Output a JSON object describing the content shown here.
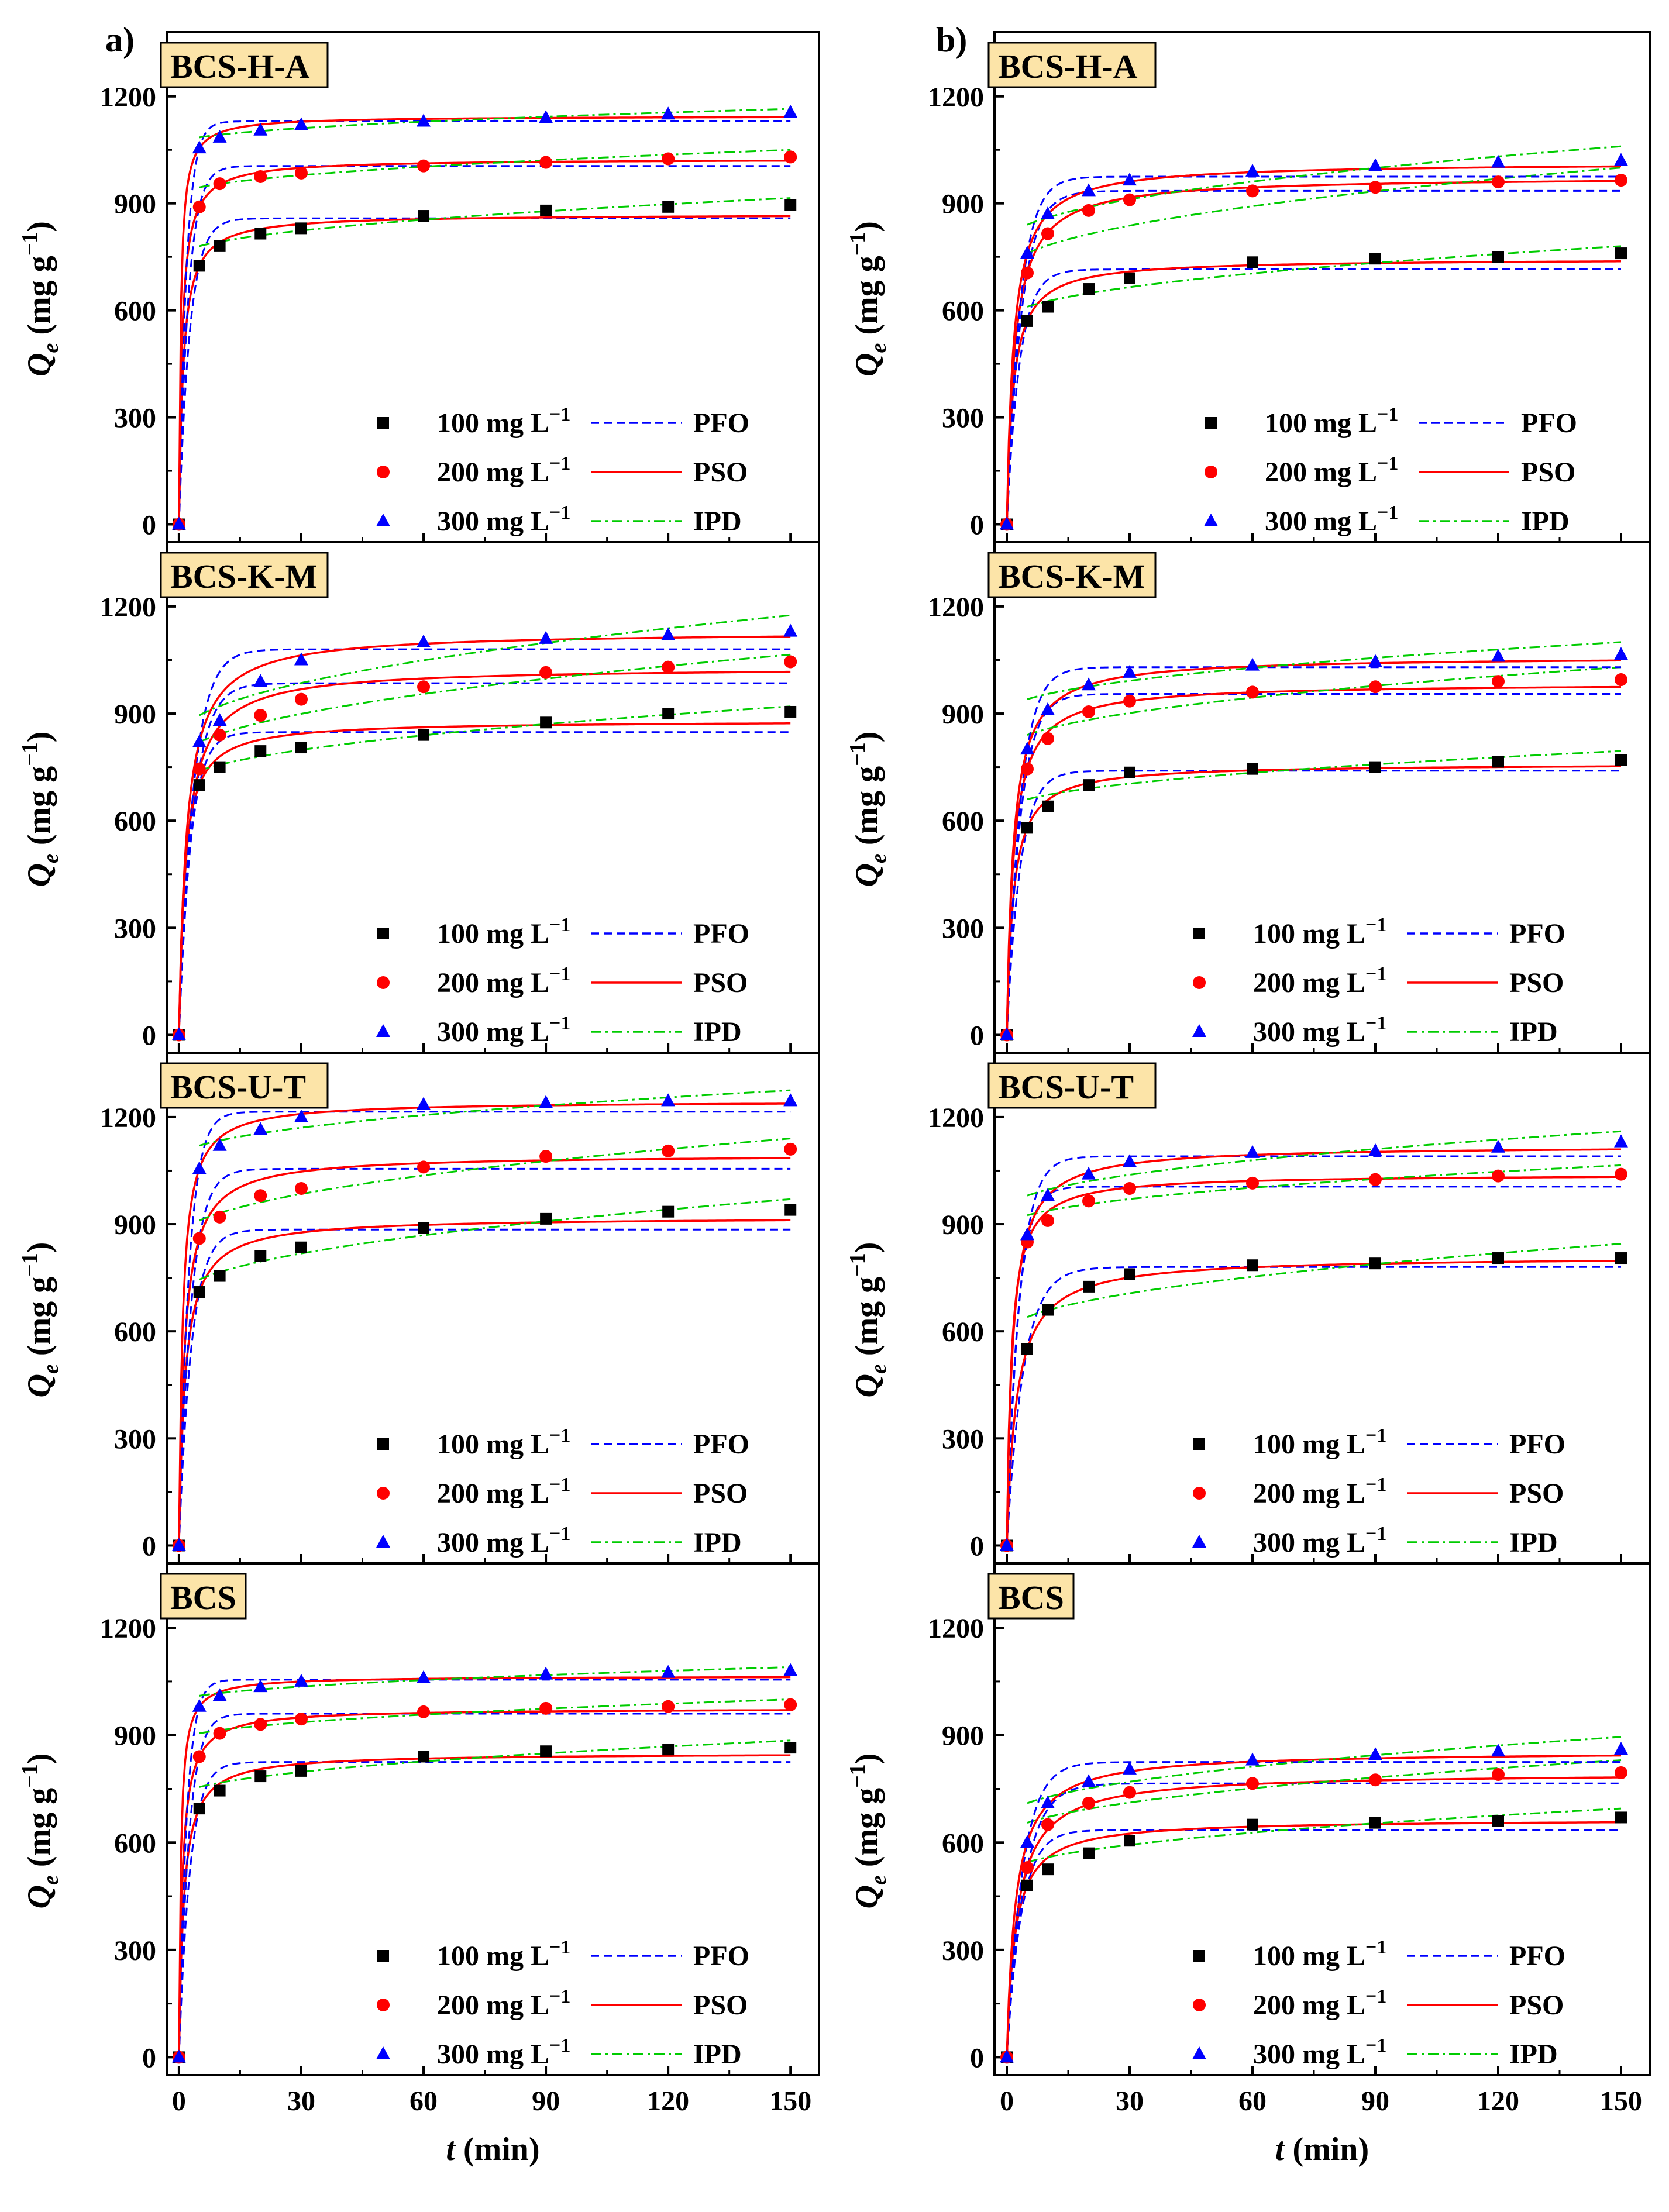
{
  "figure": {
    "column_labels": [
      "a)",
      "b)"
    ],
    "x_axis": {
      "label_italic": "t",
      "label_rest": " (min)",
      "ticks": [
        0,
        30,
        60,
        90,
        120,
        150
      ],
      "xlim": [
        -3,
        157
      ]
    },
    "y_axis": {
      "label_italic": "Q",
      "label_sub": "e",
      "label_rest": " (mg g",
      "label_sup": "−1",
      "label_close": ")",
      "ticks": [
        0,
        300,
        600,
        900,
        1200
      ],
      "ylim": [
        -50,
        1380
      ]
    },
    "legend": {
      "entries": [
        {
          "label_main": "100 mg L",
          "label_sup": "−1",
          "marker": "square",
          "color": "#000000"
        },
        {
          "label_main": "200 mg L",
          "label_sup": "−1",
          "marker": "circle",
          "color": "#ff0000"
        },
        {
          "label_main": "300 mg L",
          "label_sup": "−1",
          "marker": "triangle",
          "color": "#0000ff"
        }
      ],
      "models": [
        {
          "label": "PFO",
          "color": "#0000ff",
          "dash": "dashed"
        },
        {
          "label": "PSO",
          "color": "#ff0000",
          "dash": "solid"
        },
        {
          "label": "IPD",
          "color": "#00cc00",
          "dash": "dashdot"
        }
      ]
    },
    "colors": {
      "c100": "#000000",
      "c200": "#ff0000",
      "c300": "#0000ff",
      "pfo": "#0000ff",
      "pso": "#ff0000",
      "ipd": "#00cc00",
      "label_box": "#fce4a8"
    }
  },
  "chart_data": [
    {
      "type": "scatter",
      "panel": "a",
      "row": 0,
      "title": "BCS-H-A",
      "xlabel": "t (min)",
      "ylabel": "Qe (mg g−1)",
      "x": [
        0,
        5,
        10,
        20,
        30,
        60,
        90,
        120,
        150
      ],
      "series": [
        {
          "name": "100 mg L−1",
          "values": [
            0,
            725,
            780,
            815,
            830,
            865,
            880,
            890,
            895
          ],
          "fits": {
            "PFO_qe": 858,
            "PSO_qe": 870,
            "IPD": [
              780,
              915
            ]
          }
        },
        {
          "name": "200 mg L−1",
          "values": [
            0,
            890,
            955,
            975,
            985,
            1005,
            1015,
            1025,
            1030
          ],
          "fits": {
            "PFO_qe": 1005,
            "PSO_qe": 1025,
            "IPD": [
              945,
              1050
            ]
          }
        },
        {
          "name": "300 mg L−1",
          "values": [
            0,
            1055,
            1085,
            1105,
            1120,
            1130,
            1140,
            1150,
            1155
          ],
          "fits": {
            "PFO_qe": 1130,
            "PSO_qe": 1145,
            "IPD": [
              1085,
              1165
            ]
          }
        }
      ]
    },
    {
      "type": "scatter",
      "panel": "a",
      "row": 1,
      "title": "BCS-K-M",
      "xlabel": "t (min)",
      "ylabel": "Qe (mg g−1)",
      "x": [
        0,
        5,
        10,
        20,
        30,
        60,
        90,
        120,
        150
      ],
      "series": [
        {
          "name": "100 mg L−1",
          "values": [
            0,
            700,
            750,
            795,
            805,
            840,
            875,
            900,
            905
          ],
          "fits": {
            "PFO_qe": 848,
            "PSO_qe": 880,
            "IPD": [
              740,
              920
            ]
          }
        },
        {
          "name": "200 mg L−1",
          "values": [
            0,
            745,
            840,
            895,
            940,
            975,
            1015,
            1030,
            1045
          ],
          "fits": {
            "PFO_qe": 985,
            "PSO_qe": 1030,
            "IPD": [
              820,
              1065
            ]
          }
        },
        {
          "name": "300 mg L−1",
          "values": [
            0,
            820,
            880,
            990,
            1050,
            1100,
            1110,
            1120,
            1130
          ],
          "fits": {
            "PFO_qe": 1080,
            "PSO_qe": 1130,
            "IPD": [
              895,
              1175
            ]
          }
        }
      ]
    },
    {
      "type": "scatter",
      "panel": "a",
      "row": 2,
      "title": "BCS-U-T",
      "xlabel": "t (min)",
      "ylabel": "Qe (mg g−1)",
      "x": [
        0,
        5,
        10,
        20,
        30,
        60,
        90,
        120,
        150
      ],
      "series": [
        {
          "name": "100 mg L−1",
          "values": [
            0,
            710,
            755,
            810,
            835,
            890,
            915,
            935,
            940
          ],
          "fits": {
            "PFO_qe": 885,
            "PSO_qe": 920,
            "IPD": [
              745,
              970
            ]
          }
        },
        {
          "name": "200 mg L−1",
          "values": [
            0,
            860,
            920,
            980,
            1000,
            1060,
            1090,
            1105,
            1110
          ],
          "fits": {
            "PFO_qe": 1055,
            "PSO_qe": 1095,
            "IPD": [
              910,
              1140
            ]
          }
        },
        {
          "name": "300 mg L−1",
          "values": [
            0,
            1055,
            1120,
            1165,
            1200,
            1235,
            1240,
            1245,
            1245
          ],
          "fits": {
            "PFO_qe": 1215,
            "PSO_qe": 1245,
            "IPD": [
              1120,
              1275
            ]
          }
        }
      ]
    },
    {
      "type": "scatter",
      "panel": "a",
      "row": 3,
      "title": "BCS",
      "xlabel": "t (min)",
      "ylabel": "Qe (mg g−1)",
      "x": [
        0,
        5,
        10,
        20,
        30,
        60,
        90,
        120,
        150
      ],
      "series": [
        {
          "name": "100 mg L−1",
          "values": [
            0,
            695,
            745,
            785,
            800,
            840,
            855,
            860,
            865
          ],
          "fits": {
            "PFO_qe": 825,
            "PSO_qe": 850,
            "IPD": [
              755,
              885
            ]
          }
        },
        {
          "name": "200 mg L−1",
          "values": [
            0,
            840,
            905,
            930,
            945,
            965,
            975,
            980,
            985
          ],
          "fits": {
            "PFO_qe": 960,
            "PSO_qe": 975,
            "IPD": [
              905,
              1000
            ]
          }
        },
        {
          "name": "300 mg L−1",
          "values": [
            0,
            980,
            1010,
            1035,
            1050,
            1060,
            1070,
            1075,
            1080
          ],
          "fits": {
            "PFO_qe": 1055,
            "PSO_qe": 1065,
            "IPD": [
              1010,
              1090
            ]
          }
        }
      ]
    },
    {
      "type": "scatter",
      "panel": "b",
      "row": 0,
      "title": "BCS-H-A",
      "xlabel": "t (min)",
      "ylabel": "Qe (mg g−1)",
      "x": [
        0,
        5,
        10,
        20,
        30,
        60,
        90,
        120,
        150
      ],
      "series": [
        {
          "name": "100 mg L−1",
          "values": [
            0,
            570,
            610,
            660,
            690,
            735,
            745,
            750,
            760
          ],
          "fits": {
            "PFO_qe": 715,
            "PSO_qe": 745,
            "IPD": [
              610,
              780
            ]
          }
        },
        {
          "name": "200 mg L−1",
          "values": [
            0,
            705,
            815,
            880,
            910,
            935,
            945,
            960,
            965
          ],
          "fits": {
            "PFO_qe": 935,
            "PSO_qe": 975,
            "IPD": [
              760,
              1000
            ]
          }
        },
        {
          "name": "300 mg L−1",
          "values": [
            0,
            760,
            870,
            935,
            965,
            990,
            1005,
            1015,
            1020
          ],
          "fits": {
            "PFO_qe": 975,
            "PSO_qe": 1015,
            "IPD": [
              840,
              1060
            ]
          }
        }
      ]
    },
    {
      "type": "scatter",
      "panel": "b",
      "row": 1,
      "title": "BCS-K-M",
      "xlabel": "t (min)",
      "ylabel": "Qe (mg g−1)",
      "x": [
        0,
        5,
        10,
        20,
        30,
        60,
        90,
        120,
        150
      ],
      "series": [
        {
          "name": "100 mg L−1",
          "values": [
            0,
            580,
            640,
            700,
            735,
            745,
            750,
            765,
            770
          ],
          "fits": {
            "PFO_qe": 740,
            "PSO_qe": 760,
            "IPD": [
              660,
              795
            ]
          }
        },
        {
          "name": "200 mg L−1",
          "values": [
            0,
            745,
            830,
            905,
            935,
            960,
            975,
            990,
            995
          ],
          "fits": {
            "PFO_qe": 955,
            "PSO_qe": 985,
            "IPD": [
              840,
              1030
            ]
          }
        },
        {
          "name": "300 mg L−1",
          "values": [
            0,
            800,
            910,
            980,
            1015,
            1035,
            1045,
            1060,
            1065
          ],
          "fits": {
            "PFO_qe": 1030,
            "PSO_qe": 1060,
            "IPD": [
              940,
              1100
            ]
          }
        }
      ]
    },
    {
      "type": "scatter",
      "panel": "b",
      "row": 2,
      "title": "BCS-U-T",
      "xlabel": "t (min)",
      "ylabel": "Qe (mg g−1)",
      "x": [
        0,
        5,
        10,
        20,
        30,
        60,
        90,
        120,
        150
      ],
      "series": [
        {
          "name": "100 mg L−1",
          "values": [
            0,
            550,
            660,
            725,
            760,
            785,
            790,
            805,
            805
          ],
          "fits": {
            "PFO_qe": 780,
            "PSO_qe": 810,
            "IPD": [
              640,
              845
            ]
          }
        },
        {
          "name": "200 mg L−1",
          "values": [
            0,
            850,
            910,
            965,
            1000,
            1015,
            1025,
            1035,
            1040
          ],
          "fits": {
            "PFO_qe": 1005,
            "PSO_qe": 1040,
            "IPD": [
              925,
              1065
            ]
          }
        },
        {
          "name": "300 mg L−1",
          "values": [
            0,
            870,
            980,
            1040,
            1075,
            1100,
            1105,
            1115,
            1130
          ],
          "fits": {
            "PFO_qe": 1090,
            "PSO_qe": 1120,
            "IPD": [
              980,
              1160
            ]
          }
        }
      ]
    },
    {
      "type": "scatter",
      "panel": "b",
      "row": 3,
      "title": "BCS",
      "xlabel": "t (min)",
      "ylabel": "Qe (mg g−1)",
      "x": [
        0,
        5,
        10,
        20,
        30,
        60,
        90,
        120,
        150
      ],
      "series": [
        {
          "name": "100 mg L−1",
          "values": [
            0,
            480,
            525,
            570,
            605,
            650,
            655,
            660,
            670
          ],
          "fits": {
            "PFO_qe": 635,
            "PSO_qe": 665,
            "IPD": [
              545,
              695
            ]
          }
        },
        {
          "name": "200 mg L−1",
          "values": [
            0,
            530,
            650,
            710,
            740,
            765,
            775,
            790,
            795
          ],
          "fits": {
            "PFO_qe": 765,
            "PSO_qe": 795,
            "IPD": [
              655,
              830
            ]
          }
        },
        {
          "name": "300 mg L−1",
          "values": [
            0,
            600,
            710,
            770,
            805,
            830,
            845,
            855,
            860
          ],
          "fits": {
            "PFO_qe": 825,
            "PSO_qe": 855,
            "IPD": [
              710,
              895
            ]
          }
        }
      ]
    }
  ]
}
